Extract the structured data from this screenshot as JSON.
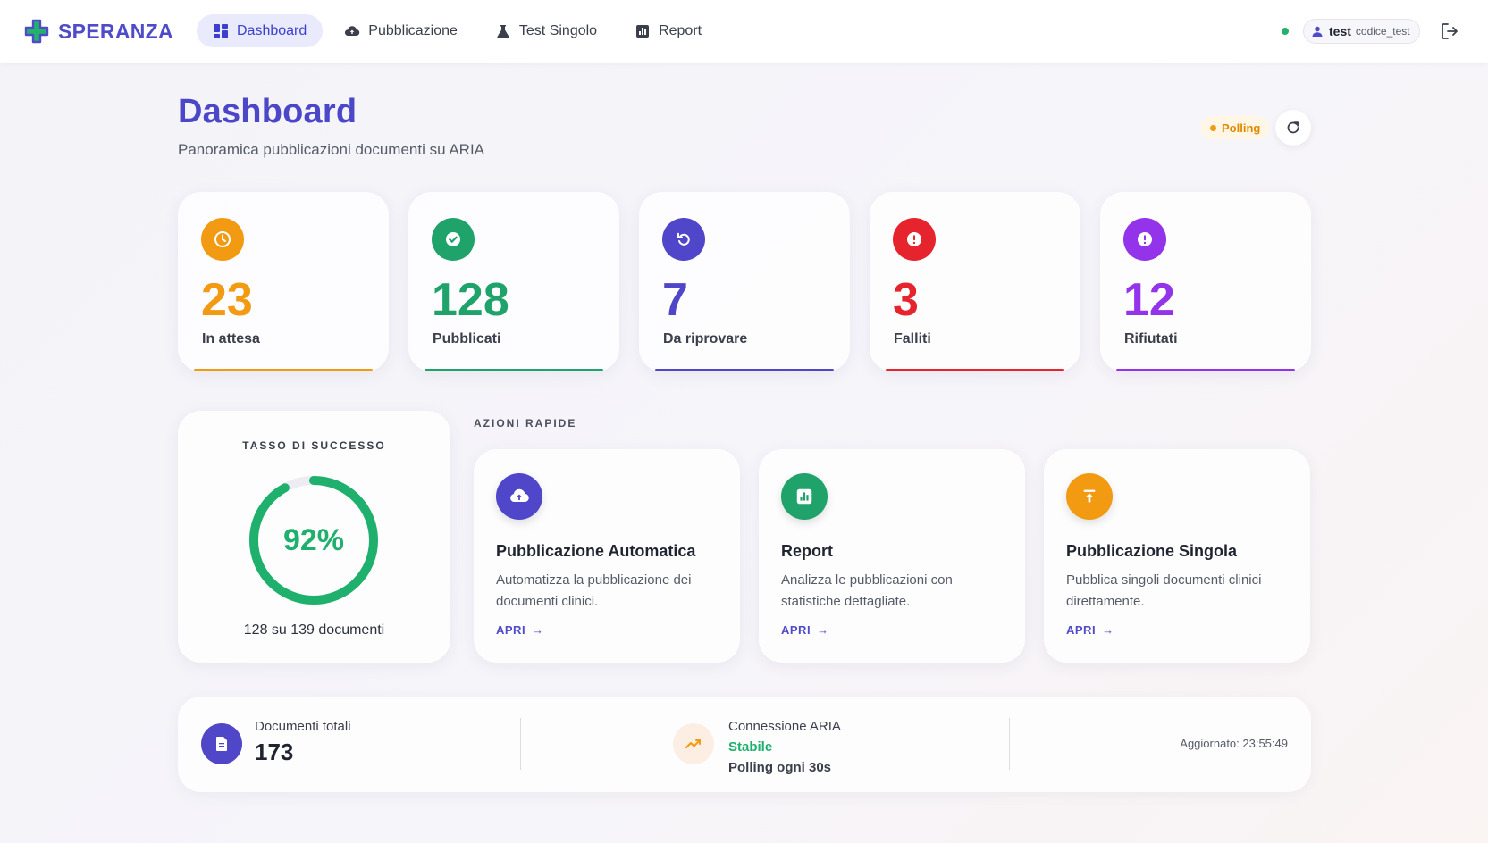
{
  "brand": {
    "name": "SPERANZA"
  },
  "nav": {
    "items": [
      {
        "label": "Dashboard",
        "icon": "dashboard-grid-icon",
        "active": true
      },
      {
        "label": "Pubblicazione",
        "icon": "cloud-upload-icon",
        "active": false
      },
      {
        "label": "Test Singolo",
        "icon": "flask-icon",
        "active": false
      },
      {
        "label": "Report",
        "icon": "bar-chart-icon",
        "active": false
      }
    ]
  },
  "user": {
    "name": "test",
    "code": "codice_test"
  },
  "page": {
    "title": "Dashboard",
    "subtitle": "Panoramica pubblicazioni documenti su ARIA",
    "polling_label": "Polling"
  },
  "stats": [
    {
      "value": "23",
      "label": "In attesa",
      "icon": "clock-icon",
      "color": "#f29a12"
    },
    {
      "value": "128",
      "label": "Pubblicati",
      "icon": "check-circle-icon",
      "color": "#1fa36a"
    },
    {
      "value": "7",
      "label": "Da riprovare",
      "icon": "retry-icon",
      "color": "#4f46c9"
    },
    {
      "value": "3",
      "label": "Falliti",
      "icon": "alert-icon",
      "color": "#e5242e"
    },
    {
      "value": "12",
      "label": "Rifiutati",
      "icon": "alert-icon",
      "color": "#9333ea"
    }
  ],
  "success": {
    "title": "TASSO DI SUCCESSO",
    "percent_label": "92%",
    "rate": 0.92,
    "caption": "128 su 139 documenti",
    "color": "#1fb06e"
  },
  "quick_actions": {
    "heading": "AZIONI RAPIDE",
    "items": [
      {
        "title": "Pubblicazione Automatica",
        "description": "Automatizza la pubblicazione dei documenti clinici.",
        "link": "APRI",
        "icon": "cloud-upload-icon",
        "color": "#4f46c9"
      },
      {
        "title": "Report",
        "description": "Analizza le pubblicazioni con statistiche dettagliate.",
        "link": "APRI",
        "icon": "bar-chart-icon",
        "color": "#1fa36a"
      },
      {
        "title": "Pubblicazione Singola",
        "description": "Pubblica singoli documenti clinici direttamente.",
        "link": "APRI",
        "icon": "upload-arrow-icon",
        "color": "#f29a12"
      }
    ]
  },
  "footer": {
    "documents_label": "Documenti totali",
    "documents_value": "173",
    "connection_label": "Connessione ARIA",
    "connection_status": "Stabile",
    "connection_polling": "Polling ogni 30s",
    "updated": "Aggiornato: 23:55:49"
  }
}
